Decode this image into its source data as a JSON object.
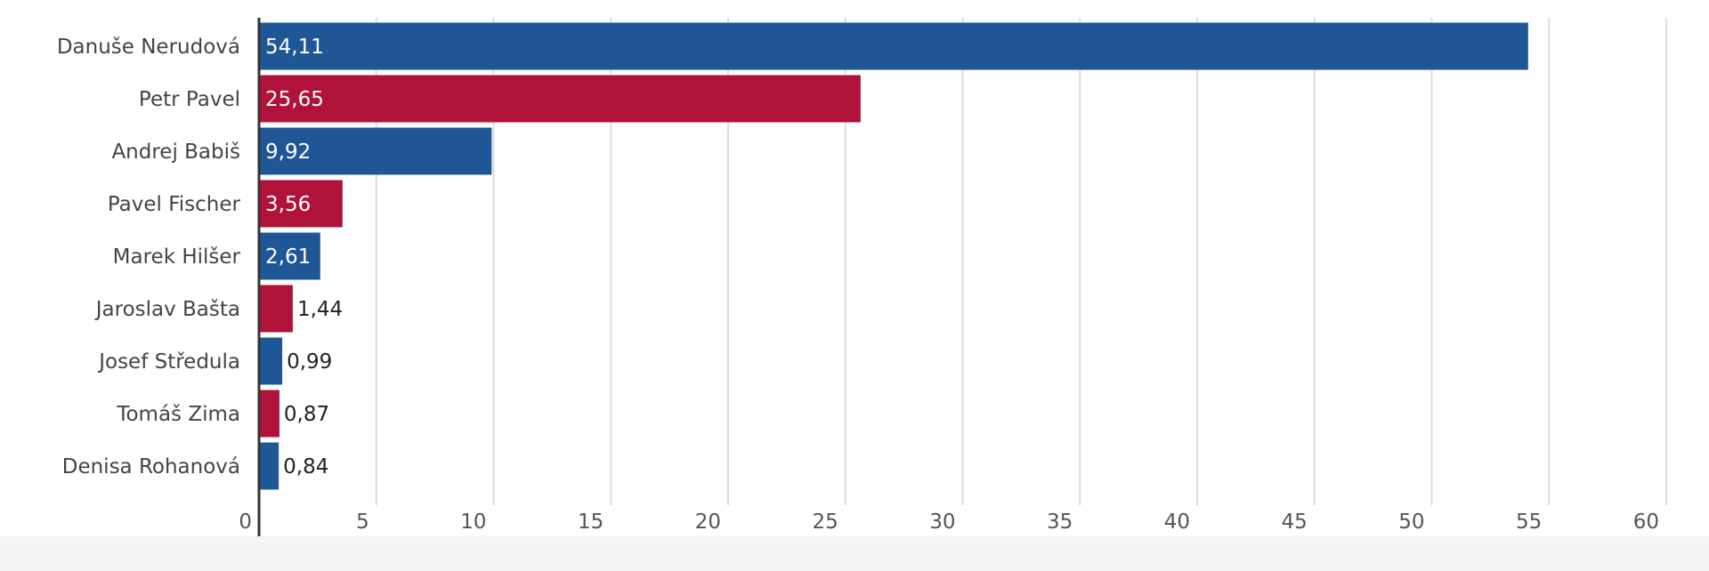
{
  "chart_data": {
    "type": "bar",
    "orientation": "horizontal",
    "categories": [
      "Danuše Nerudová",
      "Petr Pavel",
      "Andrej Babiš",
      "Pavel Fischer",
      "Marek Hilšer",
      "Jaroslav Bašta",
      "Josef Středula",
      "Tomáš Zima",
      "Denisa Rohanová"
    ],
    "values": [
      54.11,
      25.65,
      9.92,
      3.56,
      2.61,
      1.44,
      0.99,
      0.87,
      0.84
    ],
    "value_labels": [
      "54,11",
      "25,65",
      "9,92",
      "3,56",
      "2,61",
      "1,44",
      "0,99",
      "0,87",
      "0,84"
    ],
    "bar_colors": [
      "#1f5796",
      "#b0123a",
      "#1f5796",
      "#b0123a",
      "#1f5796",
      "#b0123a",
      "#1f5796",
      "#b0123a",
      "#1f5796"
    ],
    "xlim": [
      0,
      60
    ],
    "xticks": [
      "0",
      "5",
      "10",
      "15",
      "20",
      "25",
      "30",
      "35",
      "40",
      "45",
      "50",
      "55",
      "60"
    ],
    "title": "",
    "xlabel": "",
    "ylabel": "",
    "grid": "vertical",
    "legend": "none"
  },
  "colors": {
    "blue": "#1f5796",
    "red": "#b0123a",
    "gridline": "#dddddd",
    "axis": "#333333"
  }
}
